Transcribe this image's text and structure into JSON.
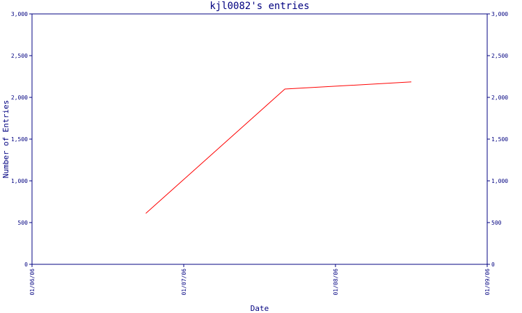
{
  "chart_data": {
    "type": "line",
    "title": "kjl0082's entries",
    "xlabel": "Date",
    "ylabel": "Number of Entries",
    "x_ticks": [
      "01/06/06",
      "01/07/06",
      "01/08/06",
      "01/09/06"
    ],
    "y_ticks": [
      "0",
      "500",
      "1,000",
      "1,500",
      "2,000",
      "2,500",
      "3,000"
    ],
    "ylim": [
      0,
      3000
    ],
    "xlim": [
      "2006-01-06",
      "2006-01-09"
    ],
    "grid": false,
    "series": [
      {
        "color": "#ff0000",
        "x": [
          "2006-01-06 18:00",
          "2006-01-07 16:00",
          "2006-01-08 12:00"
        ],
        "y": [
          610,
          2100,
          2185
        ]
      }
    ]
  },
  "colors": {
    "axis": "#000080",
    "line": "#ff0000",
    "background": "#ffffff"
  }
}
